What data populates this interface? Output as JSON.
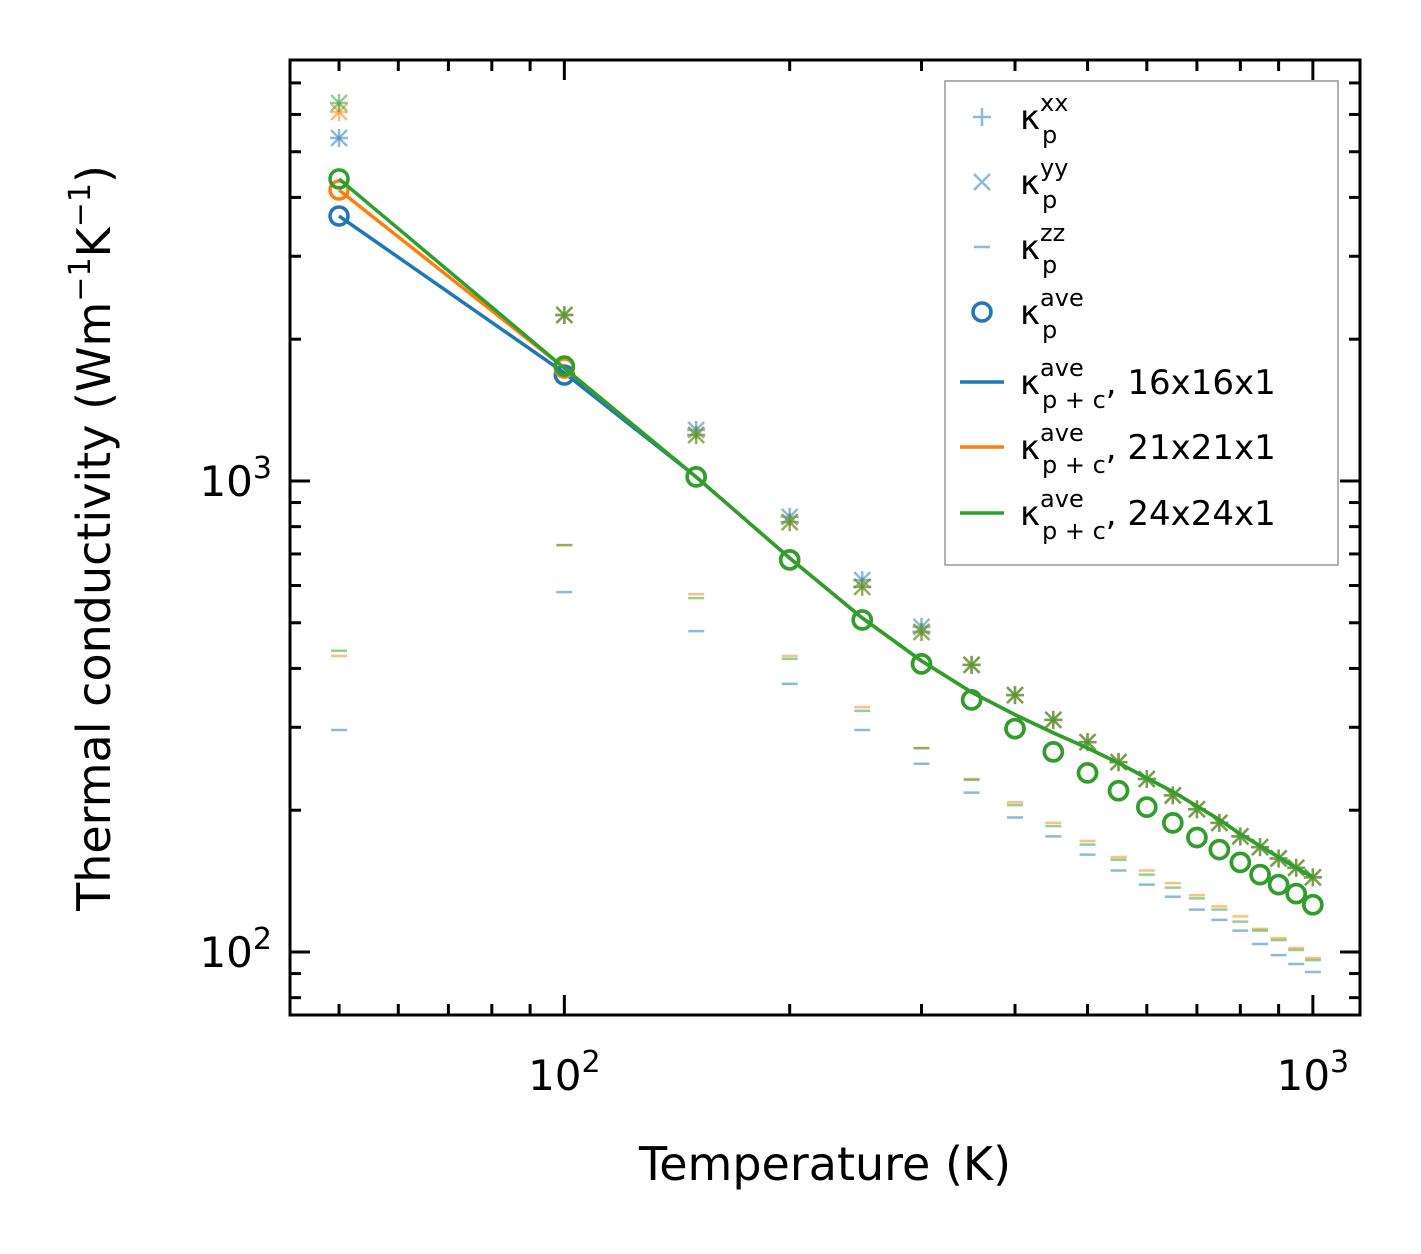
{
  "chart_data": {
    "type": "line",
    "xscale": "log",
    "yscale": "log",
    "xlabel": "Temperature (K)",
    "ylabel": {
      "main": "Thermal conductivity (Wm",
      "exp1": "−1",
      "mid": "K",
      "exp2": "−1",
      "end": ")"
    },
    "xlim": [
      43,
      1156
    ],
    "ylim": [
      73.5,
      7830
    ],
    "xticks": [
      {
        "value": 100,
        "base": "10",
        "exp": "2"
      },
      {
        "value": 1000,
        "base": "10",
        "exp": "3"
      }
    ],
    "yticks": [
      {
        "value": 100,
        "base": "10",
        "exp": "2"
      },
      {
        "value": 1000,
        "base": "10",
        "exp": "3"
      }
    ],
    "x": [
      50,
      100,
      150,
      200,
      250,
      300,
      350,
      400,
      450,
      500,
      550,
      600,
      650,
      700,
      750,
      800,
      850,
      900,
      950,
      1000
    ],
    "colors": {
      "16x16x1": "#1f77b4",
      "21x21x1": "#ff7f0e",
      "24x24x1": "#2ca02c"
    },
    "series": [
      {
        "name": "16x16x1",
        "color": "#1f77b4",
        "kxx": [
          5349,
          2251,
          1283,
          839,
          616,
          490,
          407,
          351,
          311,
          279,
          253,
          233,
          215,
          201,
          188,
          176,
          167,
          158,
          151,
          144
        ],
        "kyy": [
          5349,
          2251,
          1283,
          839,
          616,
          490,
          407,
          351,
          311,
          279,
          253,
          233,
          215,
          201,
          188,
          176,
          167,
          158,
          151,
          144
        ],
        "kzz": [
          296,
          581,
          480,
          371,
          296,
          251,
          218,
          193,
          176,
          161,
          149,
          139,
          131,
          123,
          117,
          111,
          104,
          98.5,
          94.3,
          90.7
        ],
        "kave": [
          3652,
          1679,
          1020,
          680,
          507,
          409,
          343,
          298,
          266,
          240,
          220,
          203,
          188,
          175,
          165,
          155,
          146,
          139,
          133,
          126
        ],
        "kave_pc": [
          3652,
          1696,
          1020,
          686,
          512,
          415,
          356,
          319,
          292,
          271,
          252,
          234,
          219,
          204,
          191,
          178,
          168,
          159,
          151,
          144
        ]
      },
      {
        "name": "21x21x1",
        "color": "#ff7f0e",
        "kxx": [
          6072,
          2251,
          1252,
          818,
          596,
          478,
          407,
          351,
          311,
          279,
          253,
          233,
          215,
          201,
          188,
          176,
          167,
          158,
          151,
          144
        ],
        "kyy": [
          6072,
          2251,
          1252,
          818,
          596,
          478,
          407,
          351,
          311,
          279,
          253,
          233,
          215,
          201,
          188,
          176,
          167,
          158,
          151,
          144
        ],
        "kzz": [
          425,
          731,
          575,
          425,
          331,
          271,
          233,
          208,
          188,
          172,
          159,
          149,
          140,
          132,
          125,
          119,
          112,
          107,
          102,
          97.1
        ],
        "kave": [
          4147,
          1737,
          1020,
          680,
          507,
          409,
          343,
          298,
          266,
          240,
          220,
          203,
          188,
          175,
          165,
          155,
          146,
          139,
          133,
          126
        ],
        "kave_pc": [
          4147,
          1737,
          1020,
          686,
          512,
          415,
          356,
          319,
          292,
          271,
          252,
          234,
          219,
          204,
          191,
          178,
          168,
          159,
          151,
          144
        ]
      },
      {
        "name": "24x24x1",
        "color": "#2ca02c",
        "kxx": [
          6346,
          2251,
          1252,
          818,
          596,
          478,
          407,
          351,
          311,
          279,
          253,
          233,
          215,
          201,
          188,
          176,
          167,
          158,
          151,
          144
        ],
        "kyy": [
          6346,
          2251,
          1252,
          818,
          596,
          478,
          407,
          351,
          311,
          279,
          253,
          233,
          215,
          201,
          188,
          176,
          167,
          158,
          151,
          144
        ],
        "kzz": [
          436,
          731,
          564,
          419,
          325,
          271,
          232,
          205,
          185,
          169,
          157,
          146,
          137,
          130,
          123,
          116,
          111,
          106,
          101,
          96.1
        ],
        "kave": [
          4378,
          1754,
          1020,
          680,
          507,
          409,
          343,
          298,
          266,
          240,
          220,
          203,
          188,
          175,
          165,
          155,
          146,
          139,
          133,
          126
        ],
        "kave_pc": [
          4378,
          1737,
          1020,
          686,
          512,
          415,
          356,
          319,
          292,
          271,
          252,
          234,
          219,
          204,
          191,
          178,
          168,
          159,
          151,
          144
        ]
      }
    ],
    "legend": {
      "placement": "top-right",
      "entries": [
        {
          "sym": "κ",
          "sub": "p",
          "sup": "xx",
          "suffix": "",
          "marker": "plus",
          "color": "#1f77b4"
        },
        {
          "sym": "κ",
          "sub": "p",
          "sup": "yy",
          "suffix": "",
          "marker": "x",
          "color": "#1f77b4"
        },
        {
          "sym": "κ",
          "sub": "p",
          "sup": "zz",
          "suffix": "",
          "marker": "dash",
          "color": "#1f77b4"
        },
        {
          "sym": "κ",
          "sub": "p",
          "sup": "ave",
          "suffix": "",
          "marker": "circle",
          "color": "#1f77b4"
        },
        {
          "sym": "κ",
          "sub": "p + c",
          "sup": "ave",
          "suffix": ", 16x16x1",
          "marker": "line",
          "color": "#1f77b4"
        },
        {
          "sym": "κ",
          "sub": "p + c",
          "sup": "ave",
          "suffix": ", 21x21x1",
          "marker": "line",
          "color": "#ff7f0e"
        },
        {
          "sym": "κ",
          "sub": "p + c",
          "sup": "ave",
          "suffix": ", 24x24x1",
          "marker": "line",
          "color": "#2ca02c"
        }
      ]
    }
  }
}
